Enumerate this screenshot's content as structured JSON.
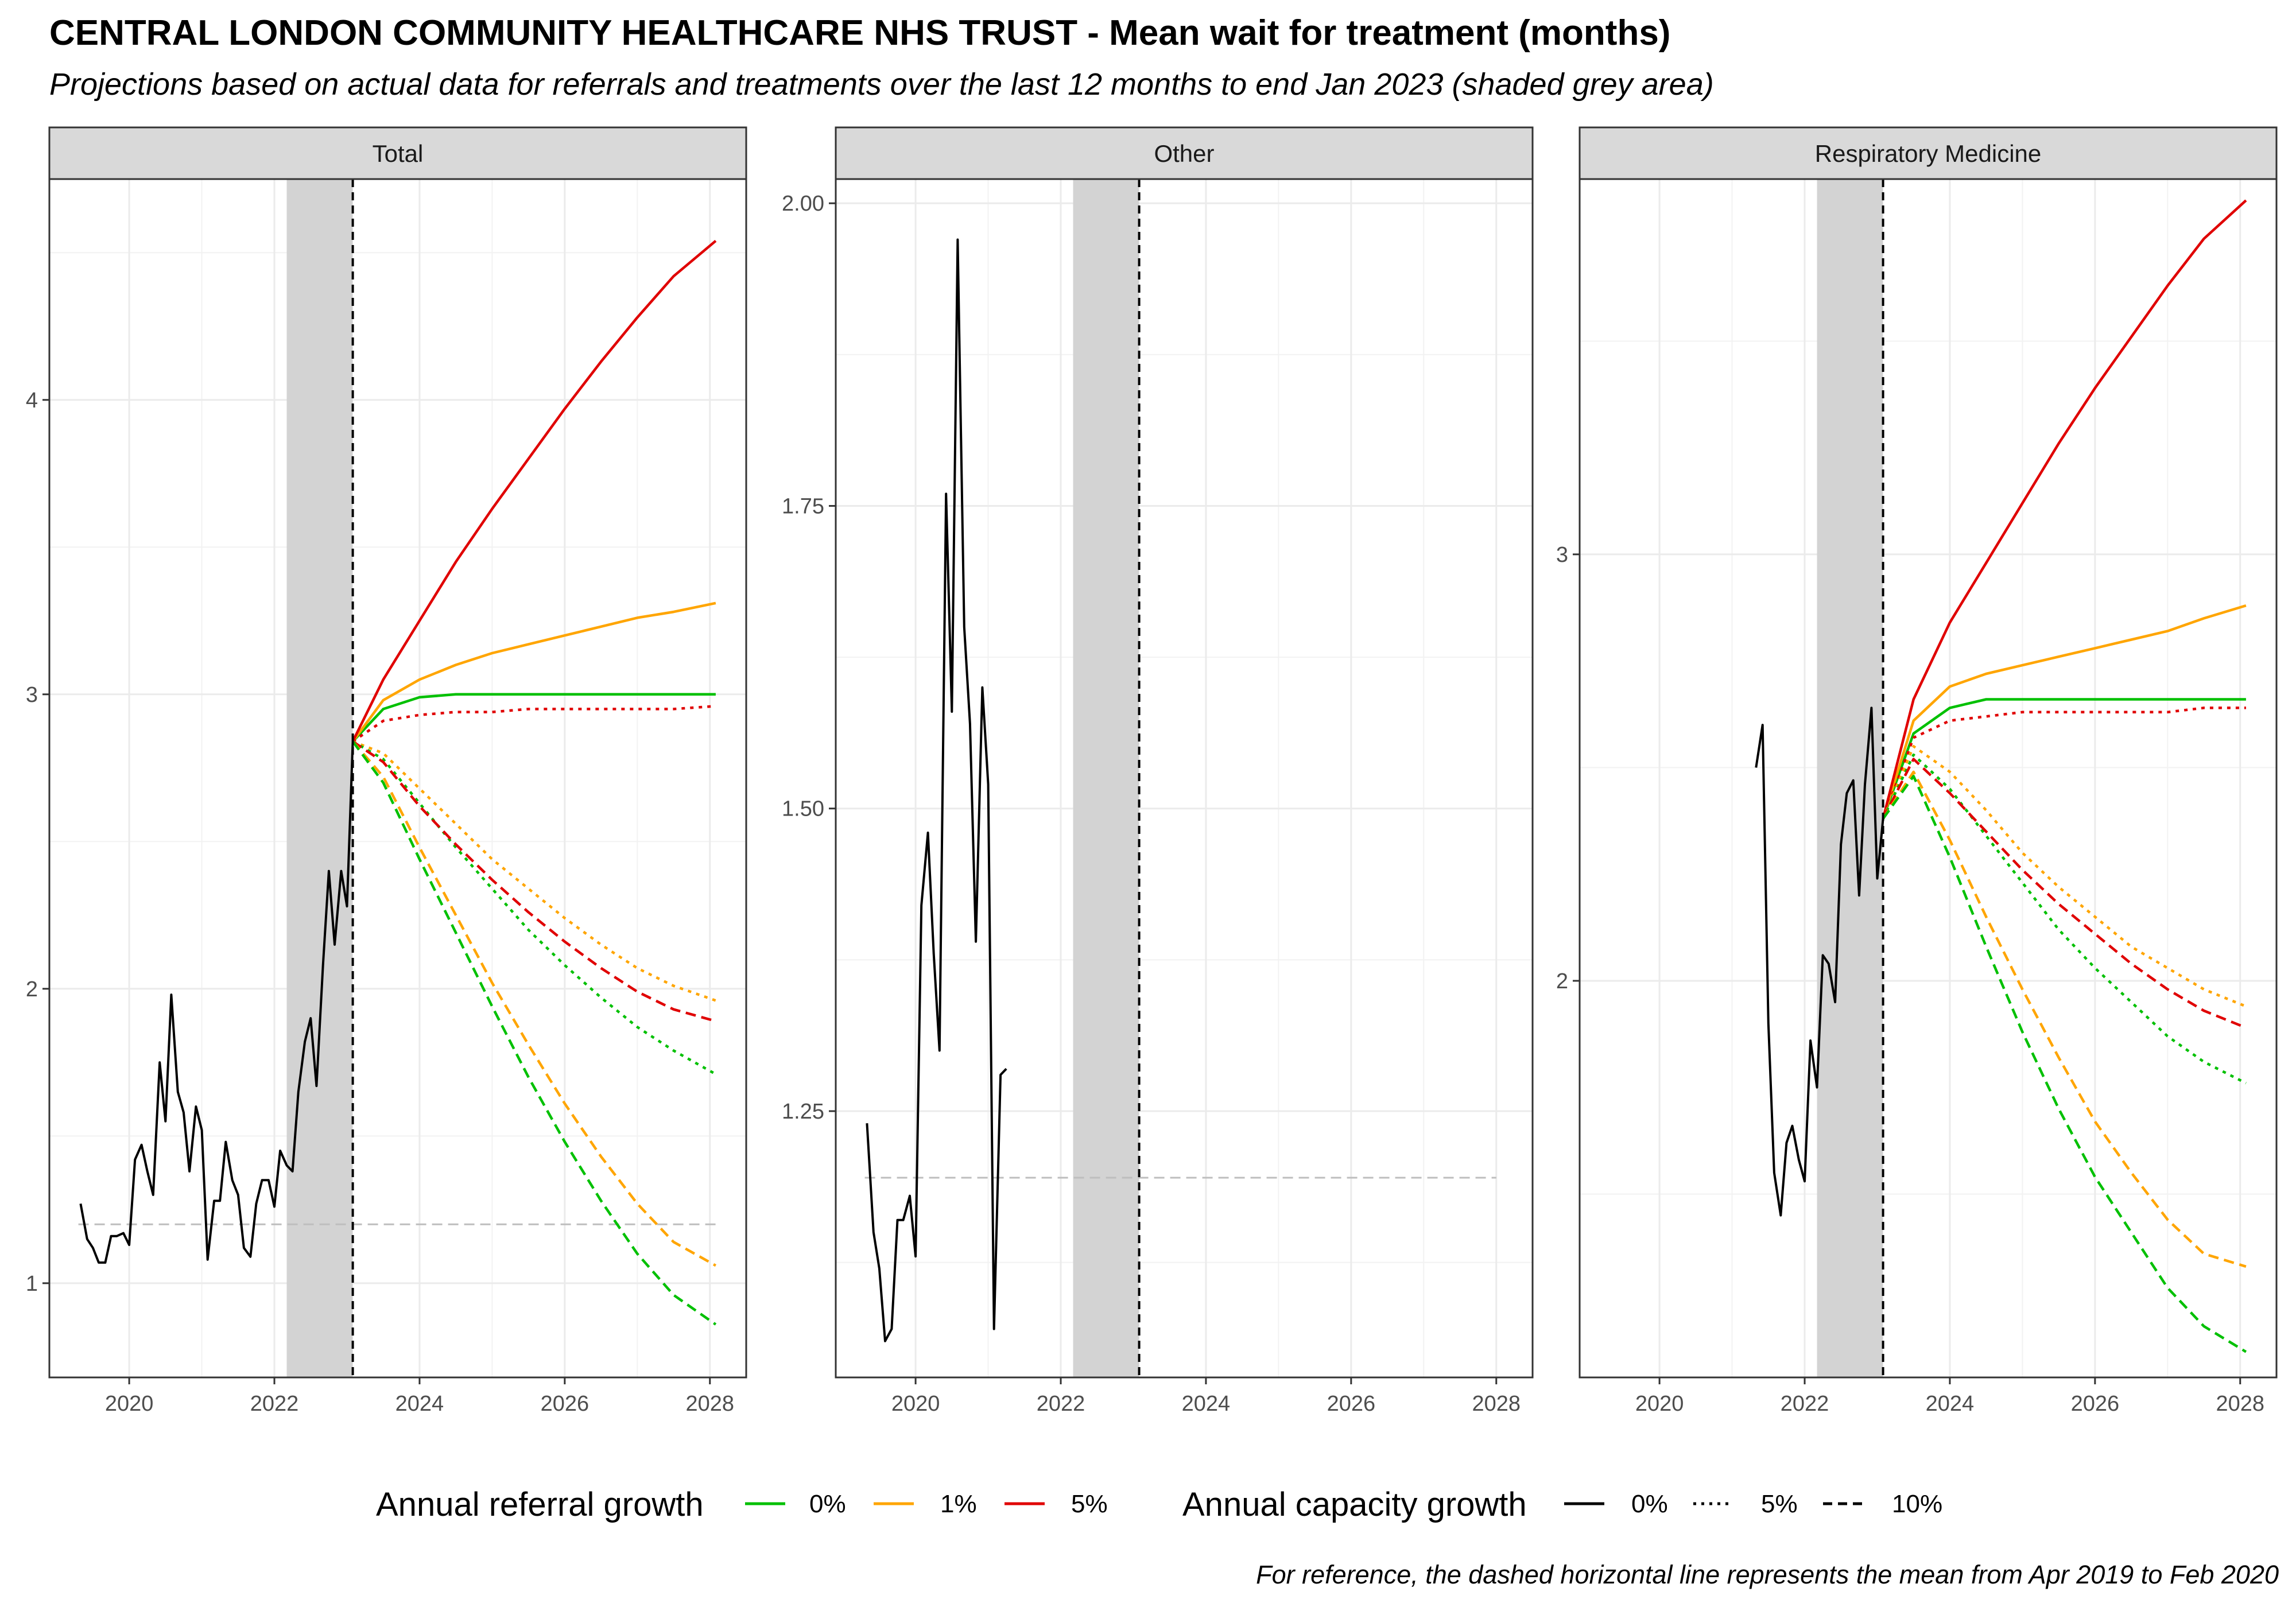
{
  "title": "CENTRAL LONDON COMMUNITY HEALTHCARE NHS TRUST - Mean wait for treatment (months)",
  "subtitle": "Projections based on actual data for referrals and treatments over the last 12 months to end Jan 2023 (shaded grey area)",
  "caption": "For reference, the dashed horizontal line represents the mean from Apr 2019 to Feb 2020",
  "legend": {
    "referral_title": "Annual referral growth",
    "referral_items": [
      {
        "label": "0%",
        "color": "#00c000"
      },
      {
        "label": "1%",
        "color": "#ffa500"
      },
      {
        "label": "5%",
        "color": "#e00000"
      }
    ],
    "capacity_title": "Annual capacity growth",
    "capacity_items": [
      {
        "label": "0%",
        "linetype": "solid"
      },
      {
        "label": "5%",
        "linetype": "dotted"
      },
      {
        "label": "10%",
        "linetype": "dashed"
      }
    ]
  },
  "colors": {
    "green": "#00c000",
    "orange": "#ffa500",
    "red": "#e00000",
    "shade": "#d3d3d3",
    "reference": "#bebebe"
  },
  "chart_data": [
    {
      "type": "line",
      "panel": "Total",
      "xlim": [
        2018.9,
        2028.5
      ],
      "ylim": [
        0.68,
        4.75
      ],
      "x_ticks": [
        2020,
        2022,
        2024,
        2026,
        2028
      ],
      "y_ticks": [
        1,
        2,
        3,
        4
      ],
      "shaded_period": [
        2022.17,
        2023.08
      ],
      "projection_start": 2023.08,
      "reference_line": {
        "value": 1.2,
        "x": [
          2019.3,
          2028.1
        ]
      },
      "actual": {
        "x": [
          2019.33,
          2019.42,
          2019.5,
          2019.58,
          2019.67,
          2019.75,
          2019.83,
          2019.92,
          2020.0,
          2020.08,
          2020.17,
          2020.25,
          2020.33,
          2020.42,
          2020.5,
          2020.58,
          2020.67,
          2020.75,
          2020.83,
          2020.92,
          2021.0,
          2021.08,
          2021.17,
          2021.25,
          2021.33,
          2021.42,
          2021.5,
          2021.58,
          2021.67,
          2021.75,
          2021.83,
          2021.92,
          2022.0,
          2022.08,
          2022.17,
          2022.25,
          2022.33,
          2022.42,
          2022.5,
          2022.58,
          2022.67,
          2022.75,
          2022.83,
          2022.92,
          2023.0,
          2023.08
        ],
        "y": [
          1.27,
          1.15,
          1.12,
          1.07,
          1.07,
          1.16,
          1.16,
          1.17,
          1.13,
          1.42,
          1.47,
          1.38,
          1.3,
          1.75,
          1.55,
          1.98,
          1.65,
          1.58,
          1.38,
          1.6,
          1.52,
          1.08,
          1.28,
          1.28,
          1.48,
          1.35,
          1.3,
          1.12,
          1.09,
          1.27,
          1.35,
          1.35,
          1.26,
          1.45,
          1.4,
          1.38,
          1.65,
          1.82,
          1.9,
          1.67,
          2.08,
          2.4,
          2.15,
          2.4,
          2.28,
          2.84
        ]
      },
      "projections": {
        "x": [
          2023.08,
          2023.5,
          2024,
          2024.5,
          2025,
          2025.5,
          2026,
          2026.5,
          2027,
          2027.5,
          2028.08
        ],
        "series": [
          {
            "referral": "0%",
            "capacity": "0%",
            "color": "#00c000",
            "dash": "solid",
            "y": [
              2.84,
              2.95,
              2.99,
              3.0,
              3.0,
              3.0,
              3.0,
              3.0,
              3.0,
              3.0,
              3.0
            ]
          },
          {
            "referral": "1%",
            "capacity": "0%",
            "color": "#ffa500",
            "dash": "solid",
            "y": [
              2.84,
              2.98,
              3.05,
              3.1,
              3.14,
              3.17,
              3.2,
              3.23,
              3.26,
              3.28,
              3.31
            ]
          },
          {
            "referral": "5%",
            "capacity": "0%",
            "color": "#e00000",
            "dash": "solid",
            "y": [
              2.84,
              3.05,
              3.25,
              3.45,
              3.63,
              3.8,
              3.97,
              4.13,
              4.28,
              4.42,
              4.54
            ]
          },
          {
            "referral": "5%",
            "capacity": "5%",
            "color": "#e00000",
            "dash": "dotted",
            "y": [
              2.84,
              2.91,
              2.93,
              2.94,
              2.94,
              2.95,
              2.95,
              2.95,
              2.95,
              2.95,
              2.96
            ]
          },
          {
            "referral": "1%",
            "capacity": "5%",
            "color": "#ffa500",
            "dash": "dotted",
            "y": [
              2.84,
              2.8,
              2.68,
              2.56,
              2.44,
              2.34,
              2.24,
              2.15,
              2.07,
              2.01,
              1.96
            ]
          },
          {
            "referral": "0%",
            "capacity": "5%",
            "color": "#00c000",
            "dash": "dotted",
            "y": [
              2.84,
              2.78,
              2.63,
              2.48,
              2.34,
              2.2,
              2.08,
              1.97,
              1.87,
              1.79,
              1.71
            ]
          },
          {
            "referral": "5%",
            "capacity": "10%",
            "color": "#e00000",
            "dash": "dashed",
            "y": [
              2.84,
              2.77,
              2.62,
              2.49,
              2.37,
              2.26,
              2.16,
              2.07,
              1.99,
              1.93,
              1.89
            ]
          },
          {
            "referral": "1%",
            "capacity": "10%",
            "color": "#ffa500",
            "dash": "dashed",
            "y": [
              2.84,
              2.72,
              2.48,
              2.25,
              2.02,
              1.81,
              1.61,
              1.43,
              1.27,
              1.14,
              1.06
            ]
          },
          {
            "referral": "0%",
            "capacity": "10%",
            "color": "#00c000",
            "dash": "dashed",
            "y": [
              2.84,
              2.7,
              2.44,
              2.19,
              1.94,
              1.7,
              1.48,
              1.28,
              1.1,
              0.96,
              0.86
            ]
          }
        ]
      }
    },
    {
      "type": "line",
      "panel": "Other",
      "xlim": [
        2018.9,
        2028.5
      ],
      "ylim": [
        1.03,
        2.02
      ],
      "x_ticks": [
        2020,
        2022,
        2024,
        2026,
        2028
      ],
      "y_ticks": [
        1.25,
        1.5,
        1.75,
        2.0
      ],
      "y_tick_labels": [
        "1.25",
        "1.50",
        "1.75",
        "2.00"
      ],
      "shaded_period": [
        2022.17,
        2023.08
      ],
      "projection_start": 2023.08,
      "reference_line": {
        "value": 1.195,
        "x": [
          2019.3,
          2028.0
        ]
      },
      "actual": {
        "x": [
          2019.33,
          2019.42,
          2019.5,
          2019.58,
          2019.67,
          2019.75,
          2019.83,
          2019.92,
          2020.0,
          2020.08,
          2020.17,
          2020.25,
          2020.33,
          2020.42,
          2020.5,
          2020.58,
          2020.67,
          2020.75,
          2020.83,
          2020.92,
          2021.0,
          2021.08,
          2021.17,
          2021.25
        ],
        "y": [
          1.24,
          1.15,
          1.12,
          1.06,
          1.07,
          1.16,
          1.16,
          1.18,
          1.13,
          1.42,
          1.48,
          1.38,
          1.3,
          1.76,
          1.58,
          1.97,
          1.65,
          1.57,
          1.39,
          1.6,
          1.52,
          1.07,
          1.28,
          1.285
        ]
      },
      "projections": {
        "x": [],
        "series": []
      }
    },
    {
      "type": "line",
      "panel": "Respiratory Medicine",
      "xlim": [
        2018.9,
        2028.5
      ],
      "ylim": [
        1.07,
        3.88
      ],
      "x_ticks": [
        2020,
        2022,
        2024,
        2026,
        2028
      ],
      "y_ticks": [
        2,
        3
      ],
      "shaded_period": [
        2022.17,
        2023.08
      ],
      "projection_start": 2023.08,
      "actual": {
        "x": [
          2021.33,
          2021.42,
          2021.5,
          2021.58,
          2021.67,
          2021.75,
          2021.83,
          2021.92,
          2022.0,
          2022.08,
          2022.17,
          2022.25,
          2022.33,
          2022.42,
          2022.5,
          2022.58,
          2022.67,
          2022.75,
          2022.83,
          2022.92,
          2023.0,
          2023.08
        ],
        "y": [
          2.5,
          2.6,
          1.9,
          1.55,
          1.45,
          1.62,
          1.66,
          1.58,
          1.53,
          1.86,
          1.75,
          2.06,
          2.04,
          1.95,
          2.32,
          2.44,
          2.47,
          2.2,
          2.46,
          2.64,
          2.24,
          2.38
        ]
      },
      "projections": {
        "x": [
          2023.08,
          2023.5,
          2024,
          2024.5,
          2025,
          2025.5,
          2026,
          2026.5,
          2027,
          2027.5,
          2028.08
        ],
        "series": [
          {
            "referral": "0%",
            "capacity": "0%",
            "color": "#00c000",
            "dash": "solid",
            "y": [
              2.38,
              2.58,
              2.64,
              2.66,
              2.66,
              2.66,
              2.66,
              2.66,
              2.66,
              2.66,
              2.66
            ]
          },
          {
            "referral": "1%",
            "capacity": "0%",
            "color": "#ffa500",
            "dash": "solid",
            "y": [
              2.38,
              2.61,
              2.69,
              2.72,
              2.74,
              2.76,
              2.78,
              2.8,
              2.82,
              2.85,
              2.88
            ]
          },
          {
            "referral": "5%",
            "capacity": "0%",
            "color": "#e00000",
            "dash": "solid",
            "y": [
              2.38,
              2.66,
              2.84,
              2.98,
              3.12,
              3.26,
              3.39,
              3.51,
              3.63,
              3.74,
              3.83
            ]
          },
          {
            "referral": "5%",
            "capacity": "5%",
            "color": "#e00000",
            "dash": "dotted",
            "y": [
              2.38,
              2.57,
              2.61,
              2.62,
              2.63,
              2.63,
              2.63,
              2.63,
              2.63,
              2.64,
              2.64
            ]
          },
          {
            "referral": "1%",
            "capacity": "5%",
            "color": "#ffa500",
            "dash": "dotted",
            "y": [
              2.38,
              2.55,
              2.49,
              2.4,
              2.3,
              2.22,
              2.15,
              2.08,
              2.03,
              1.98,
              1.94
            ]
          },
          {
            "referral": "0%",
            "capacity": "5%",
            "color": "#00c000",
            "dash": "dotted",
            "y": [
              2.38,
              2.53,
              2.45,
              2.34,
              2.23,
              2.12,
              2.03,
              1.95,
              1.87,
              1.81,
              1.76
            ]
          },
          {
            "referral": "5%",
            "capacity": "10%",
            "color": "#e00000",
            "dash": "dashed",
            "y": [
              2.38,
              2.52,
              2.44,
              2.35,
              2.26,
              2.18,
              2.11,
              2.04,
              1.98,
              1.93,
              1.89
            ]
          },
          {
            "referral": "1%",
            "capacity": "10%",
            "color": "#ffa500",
            "dash": "dashed",
            "y": [
              2.38,
              2.49,
              2.33,
              2.15,
              1.98,
              1.82,
              1.67,
              1.55,
              1.44,
              1.36,
              1.33
            ]
          },
          {
            "referral": "0%",
            "capacity": "10%",
            "color": "#00c000",
            "dash": "dashed",
            "y": [
              2.38,
              2.48,
              2.29,
              2.08,
              1.88,
              1.7,
              1.54,
              1.41,
              1.28,
              1.19,
              1.13
            ]
          }
        ]
      }
    }
  ]
}
